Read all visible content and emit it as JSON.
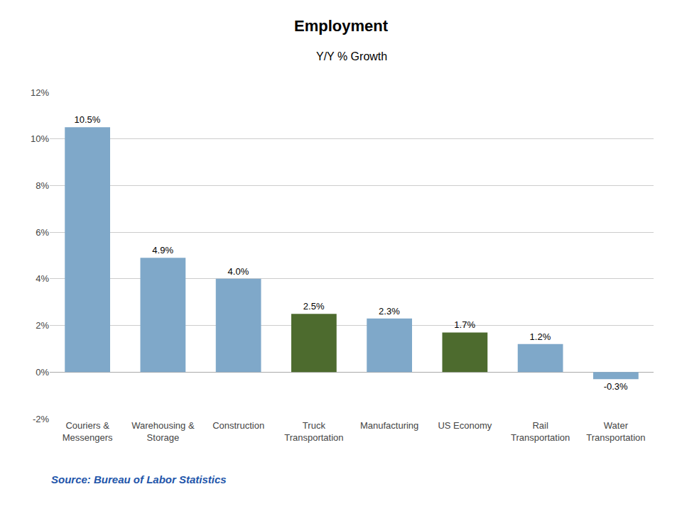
{
  "chart_data": {
    "type": "bar",
    "title": "Employment",
    "subtitle": "Y/Y % Growth",
    "source": "Source: Bureau of Labor Statistics",
    "categories": [
      "Couriers &\nMessengers",
      "Warehousing &\nStorage",
      "Construction",
      "Truck\nTransportation",
      "Manufacturing",
      "US Economy",
      "Rail\nTransportation",
      "Water\nTransportation"
    ],
    "values": [
      10.5,
      4.9,
      4.0,
      2.5,
      2.3,
      1.7,
      1.2,
      -0.3
    ],
    "value_labels": [
      "10.5%",
      "4.9%",
      "4.0%",
      "2.5%",
      "2.3%",
      "1.7%",
      "1.2%",
      "-0.3%"
    ],
    "data_labels": true,
    "colors": [
      "#7fa8c9",
      "#7fa8c9",
      "#7fa8c9",
      "#4d6b2e",
      "#7fa8c9",
      "#4d6b2e",
      "#7fa8c9",
      "#7fa8c9"
    ],
    "ylim": [
      -2,
      12
    ],
    "yticks": [
      {
        "value": -2,
        "label": "-2%"
      },
      {
        "value": 0,
        "label": "0%"
      },
      {
        "value": 2,
        "label": "2%"
      },
      {
        "value": 4,
        "label": "4%"
      },
      {
        "value": 6,
        "label": "6%"
      },
      {
        "value": 8,
        "label": "8%"
      },
      {
        "value": 10,
        "label": "10%"
      },
      {
        "value": 12,
        "label": "12%"
      }
    ],
    "grid": true
  }
}
